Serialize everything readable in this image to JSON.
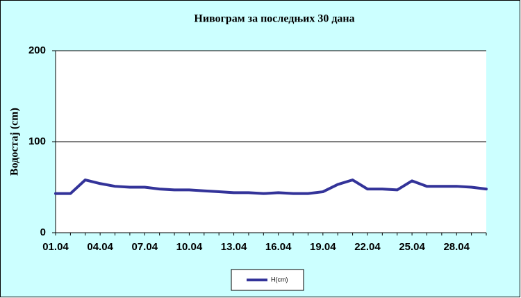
{
  "chart_data": {
    "type": "line",
    "title": "Нивограм за последњих 30 дана",
    "y_label": "Водостај (cm)",
    "categories": [
      "01.04",
      null,
      null,
      "04.04",
      null,
      null,
      "07.04",
      null,
      null,
      "10.04",
      null,
      null,
      "13.04",
      null,
      null,
      "16.04",
      null,
      null,
      "19.04",
      null,
      null,
      "22.04",
      null,
      null,
      "25.04",
      null,
      null,
      "28.04",
      null,
      null
    ],
    "series": [
      {
        "name": "H(cm)",
        "color": "#333399",
        "values": [
          43,
          43,
          58,
          54,
          51,
          50,
          50,
          48,
          47,
          47,
          46,
          45,
          44,
          44,
          43,
          44,
          43,
          43,
          45,
          53,
          58,
          48,
          48,
          47,
          57,
          51,
          51,
          51,
          50,
          48
        ]
      }
    ],
    "ylim": [
      0,
      200
    ],
    "yticks": [
      0,
      100,
      200
    ],
    "grid": true
  }
}
